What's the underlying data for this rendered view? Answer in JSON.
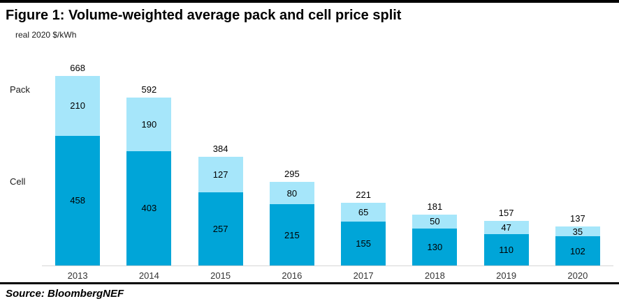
{
  "figure": {
    "title": "Figure 1: Volume-weighted average pack and cell price split",
    "unit_label": "real 2020 $/kWh",
    "source": "Source: BloombergNEF"
  },
  "axis_side_labels": {
    "pack": "Pack",
    "cell": "Cell"
  },
  "chart_data": {
    "type": "bar",
    "stacked": true,
    "title": "Figure 1: Volume-weighted average pack and cell price split",
    "ylabel": "real 2020 $/kWh",
    "xlabel": "",
    "ylim": [
      0,
      700
    ],
    "grid": false,
    "legend_position": "left-side-inline",
    "categories": [
      "2013",
      "2014",
      "2015",
      "2016",
      "2017",
      "2018",
      "2019",
      "2020"
    ],
    "series": [
      {
        "name": "Cell",
        "color": "#00a5d8",
        "values": [
          458,
          403,
          257,
          215,
          155,
          130,
          110,
          102
        ]
      },
      {
        "name": "Pack",
        "color": "#a6e6fa",
        "values": [
          210,
          190,
          127,
          80,
          65,
          50,
          47,
          35
        ]
      }
    ],
    "totals": [
      668,
      592,
      384,
      295,
      221,
      181,
      157,
      137
    ]
  }
}
